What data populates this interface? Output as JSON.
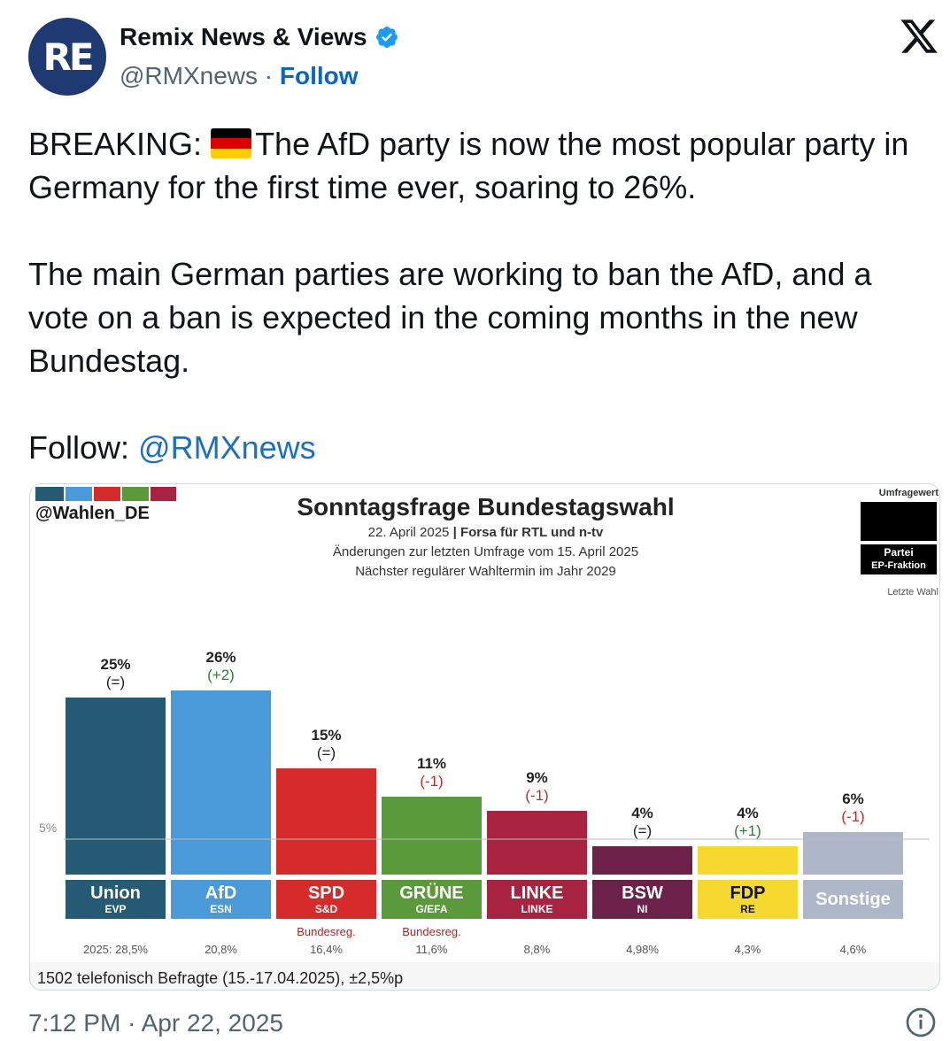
{
  "author": {
    "avatar_text": "RE",
    "display_name": "Remix News & Views",
    "handle": "@RMXnews",
    "separator": " · ",
    "follow_label": "Follow"
  },
  "tweet": {
    "line1_prefix": "BREAKING: ",
    "line1_rest": "The AfD party is now the most popular party in Germany for the first time ever, soaring to 26%.",
    "paragraph2": "The main German parties are working to ban the AfD, and a vote on a ban is expected in the coming months in the new Bundestag.",
    "follow_prefix": "Follow: ",
    "follow_mention": "@RMXnews",
    "timestamp": "7:12 PM · Apr 22, 2025"
  },
  "chart_header": {
    "source_tag": "@Wahlen_DE",
    "title": "Sonntagsfrage Bundestagswahl",
    "date": "22. April 2025",
    "divider": " | ",
    "pollster": "Forsa für RTL und n-tv",
    "changes_note": "Änderungen zur letzten Umfrage vom 15. April 2025",
    "next_election": "Nächster regulärer Wahltermin im Jahr 2029",
    "legend_value": "Umfragewert",
    "legend_party": "Partei",
    "legend_fraction": "EP-Fraktion",
    "legend_last": "Letzte Wahl",
    "footnote": "1502 telefonisch Befragte (15.-17.04.2025), ±2,5%p"
  },
  "colors": {
    "stripe": [
      "#245a73",
      "#4a9ad9",
      "#d52b2b",
      "#5a9a3a",
      "#a8233f"
    ]
  },
  "chart_data": {
    "type": "bar",
    "threshold_label": "5%",
    "threshold": 5,
    "ylim": [
      0,
      30
    ],
    "categories": [
      "Union",
      "AfD",
      "SPD",
      "GRÜNE",
      "LINKE",
      "BSW",
      "FDP",
      "Sonstige"
    ],
    "fractions": [
      "EVP",
      "ESN",
      "S&D",
      "G/EFA",
      "LINKE",
      "NI",
      "RE",
      ""
    ],
    "values": [
      25,
      26,
      15,
      11,
      9,
      4,
      4,
      6
    ],
    "value_labels": [
      "25%",
      "26%",
      "15%",
      "11%",
      "9%",
      "4%",
      "4%",
      "6%"
    ],
    "changes": [
      "(=)",
      "(+2)",
      "(=)",
      "(-1)",
      "(-1)",
      "(=)",
      "(+1)",
      "(-1)"
    ],
    "change_colors": [
      "#222222",
      "#2e7d32",
      "#222222",
      "#c62828",
      "#c62828",
      "#222222",
      "#2e7d32",
      "#c62828"
    ],
    "bar_colors": [
      "#245a73",
      "#4a9ad9",
      "#d52b2b",
      "#5a9a3a",
      "#a8233f",
      "#6b2148",
      "#f5d92e",
      "#aeb7c8"
    ],
    "name_colors": [
      "#ffffff",
      "#ffffff",
      "#ffffff",
      "#ffffff",
      "#ffffff",
      "#ffffff",
      "#111111",
      "#ffffff"
    ],
    "annotations": [
      "",
      "",
      "Bundesreg.",
      "Bundesreg.",
      "",
      "",
      "",
      ""
    ],
    "last_election": [
      "2025: 28,5%",
      "20,8%",
      "16,4%",
      "11,6%",
      "8,8%",
      "4,98%",
      "4,3%",
      "4,6%"
    ]
  }
}
